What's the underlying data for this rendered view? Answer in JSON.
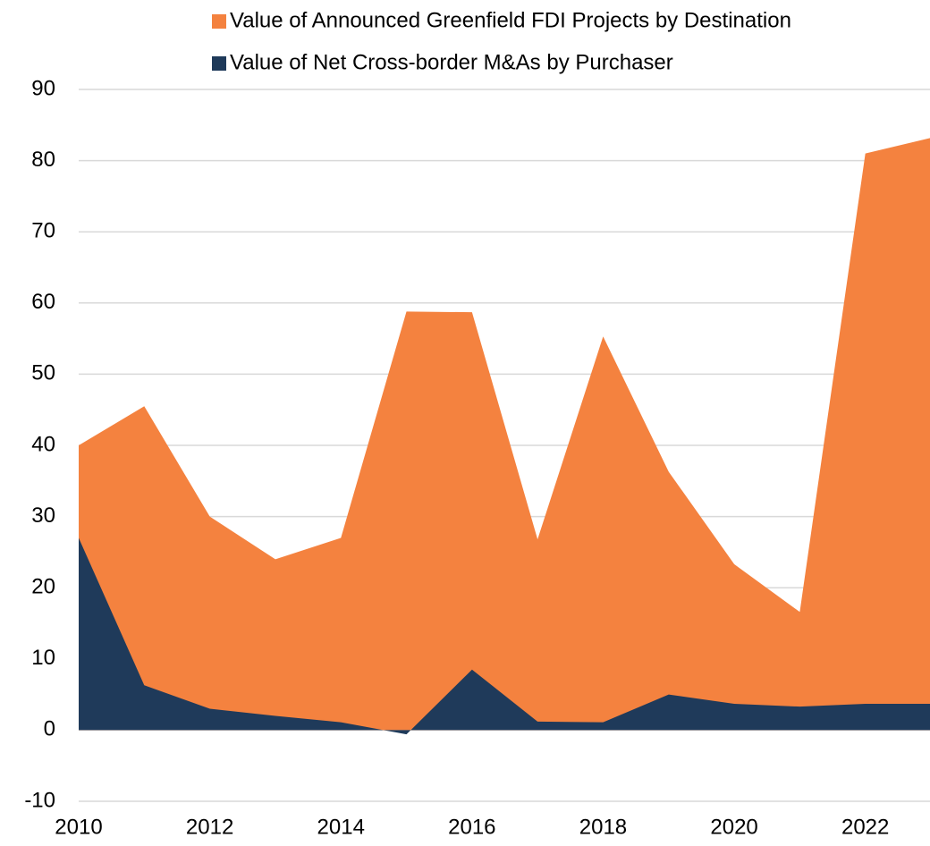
{
  "chart_data": {
    "type": "area",
    "x": [
      2010,
      2011,
      2012,
      2013,
      2014,
      2015,
      2016,
      2017,
      2018,
      2019,
      2020,
      2021,
      2022,
      2023
    ],
    "series": [
      {
        "name": "Value of Announced Greenfield FDI Projects by Destination",
        "color": "#f4823f",
        "values": [
          40,
          45.5,
          30,
          24,
          27,
          58.8,
          58.7,
          26.8,
          55.3,
          36.3,
          23.3,
          16.6,
          81,
          83.2
        ]
      },
      {
        "name": "Value of Net Cross-border M&As by Purchaser",
        "color": "#1f3a5a",
        "values": [
          27,
          6.3,
          3,
          2,
          1.1,
          -0.6,
          8.5,
          1.2,
          1.1,
          5,
          3.7,
          3.3,
          3.7,
          3.7
        ]
      }
    ],
    "xlim": [
      2010,
      2023
    ],
    "xticks": [
      2010,
      2012,
      2014,
      2016,
      2018,
      2020,
      2022
    ],
    "ylim": [
      -10,
      90
    ],
    "yticks": [
      -10,
      0,
      10,
      20,
      30,
      40,
      50,
      60,
      70,
      80,
      90
    ],
    "grid": true
  }
}
